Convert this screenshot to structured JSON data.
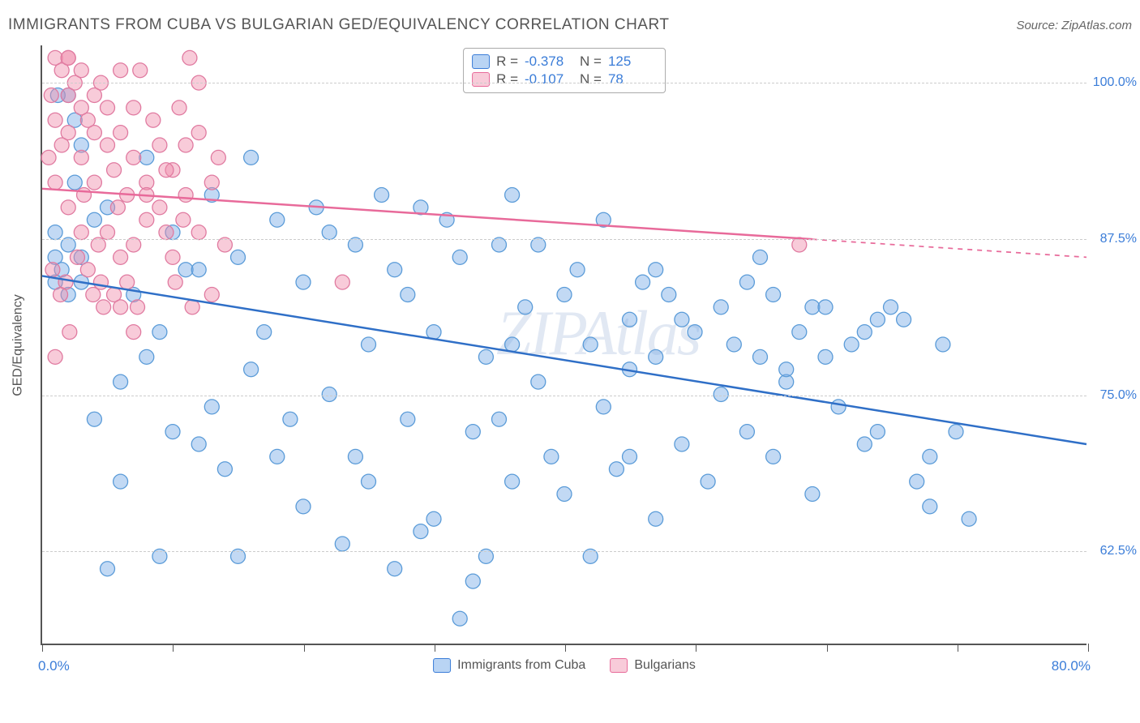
{
  "title": "IMMIGRANTS FROM CUBA VS BULGARIAN GED/EQUIVALENCY CORRELATION CHART",
  "source": "Source: ZipAtlas.com",
  "ylabel": "GED/Equivalency",
  "watermark": "ZIPAtlas",
  "chart": {
    "type": "scatter",
    "xlim": [
      0,
      80
    ],
    "ylim": [
      55,
      103
    ],
    "xtick_positions": [
      0,
      10,
      20,
      30,
      40,
      50,
      60,
      70,
      80
    ],
    "ygrid": [
      {
        "value": 62.5,
        "label": "62.5%"
      },
      {
        "value": 75.0,
        "label": "75.0%"
      },
      {
        "value": 87.5,
        "label": "87.5%"
      },
      {
        "value": 100.0,
        "label": "100.0%"
      }
    ],
    "x_left_label": "0.0%",
    "x_right_label": "80.0%",
    "background_color": "#ffffff",
    "grid_color": "#cccccc",
    "series": [
      {
        "name": "Immigrants from Cuba",
        "R": "-0.378",
        "N": "125",
        "marker_color": "rgba(120,170,230,0.45)",
        "marker_stroke": "#5a9bd8",
        "marker_radius": 9,
        "line_color": "#2f6fc7",
        "line_width": 2.5,
        "trend": {
          "x1": 0,
          "y1": 84.5,
          "x2": 80,
          "y2": 71.0,
          "data_xmax": 80
        },
        "points": [
          [
            1,
            86
          ],
          [
            1.5,
            85
          ],
          [
            2,
            87
          ],
          [
            2,
            83
          ],
          [
            1,
            88
          ],
          [
            3,
            86
          ],
          [
            2.5,
            92
          ],
          [
            3,
            84
          ],
          [
            4,
            89
          ],
          [
            1,
            84
          ],
          [
            5,
            90
          ],
          [
            6,
            76
          ],
          [
            7,
            83
          ],
          [
            8,
            94
          ],
          [
            8,
            78
          ],
          [
            9,
            80
          ],
          [
            10,
            72
          ],
          [
            10,
            88
          ],
          [
            11,
            85
          ],
          [
            12,
            71
          ],
          [
            13,
            91
          ],
          [
            13,
            74
          ],
          [
            14,
            69
          ],
          [
            15,
            62
          ],
          [
            15,
            86
          ],
          [
            16,
            94
          ],
          [
            16,
            77
          ],
          [
            17,
            80
          ],
          [
            18,
            89
          ],
          [
            18,
            70
          ],
          [
            19,
            73
          ],
          [
            20,
            84
          ],
          [
            20,
            66
          ],
          [
            21,
            90
          ],
          [
            22,
            88
          ],
          [
            22,
            75
          ],
          [
            23,
            63
          ],
          [
            24,
            87
          ],
          [
            24,
            70
          ],
          [
            25,
            79
          ],
          [
            25,
            68
          ],
          [
            26,
            91
          ],
          [
            27,
            85
          ],
          [
            27,
            61
          ],
          [
            28,
            83
          ],
          [
            28,
            73
          ],
          [
            29,
            90
          ],
          [
            30,
            80
          ],
          [
            30,
            65
          ],
          [
            31,
            89
          ],
          [
            32,
            86
          ],
          [
            32,
            57
          ],
          [
            33,
            72
          ],
          [
            33,
            60
          ],
          [
            34,
            78
          ],
          [
            34,
            62
          ],
          [
            35,
            87
          ],
          [
            36,
            91
          ],
          [
            36,
            68
          ],
          [
            37,
            82
          ],
          [
            38,
            76
          ],
          [
            38,
            87
          ],
          [
            39,
            70
          ],
          [
            40,
            83
          ],
          [
            40,
            67
          ],
          [
            41,
            85
          ],
          [
            42,
            79
          ],
          [
            42,
            62
          ],
          [
            43,
            74
          ],
          [
            43,
            89
          ],
          [
            44,
            69
          ],
          [
            45,
            81
          ],
          [
            45,
            77
          ],
          [
            46,
            84
          ],
          [
            47,
            65
          ],
          [
            47,
            78
          ],
          [
            48,
            83
          ],
          [
            49,
            71
          ],
          [
            49,
            81
          ],
          [
            50,
            80
          ],
          [
            51,
            68
          ],
          [
            52,
            75
          ],
          [
            52,
            82
          ],
          [
            53,
            79
          ],
          [
            54,
            72
          ],
          [
            55,
            86
          ],
          [
            55,
            78
          ],
          [
            56,
            83
          ],
          [
            56,
            70
          ],
          [
            57,
            76
          ],
          [
            58,
            80
          ],
          [
            59,
            82
          ],
          [
            59,
            67
          ],
          [
            60,
            78
          ],
          [
            60,
            82
          ],
          [
            61,
            74
          ],
          [
            62,
            79
          ],
          [
            63,
            71
          ],
          [
            63,
            80
          ],
          [
            64,
            72
          ],
          [
            64,
            81
          ],
          [
            65,
            82
          ],
          [
            66,
            81
          ],
          [
            67,
            68
          ],
          [
            68,
            70
          ],
          [
            68,
            66
          ],
          [
            69,
            79
          ],
          [
            70,
            72
          ],
          [
            71,
            65
          ],
          [
            57,
            77
          ],
          [
            4,
            73
          ],
          [
            6,
            68
          ],
          [
            9,
            62
          ],
          [
            12,
            85
          ],
          [
            3,
            95
          ],
          [
            29,
            64
          ],
          [
            47,
            85
          ],
          [
            54,
            84
          ],
          [
            35,
            73
          ],
          [
            45,
            70
          ],
          [
            2,
            99
          ],
          [
            2.5,
            97
          ],
          [
            1.2,
            99
          ],
          [
            5,
            61
          ],
          [
            36,
            79
          ]
        ]
      },
      {
        "name": "Bulgarians",
        "R": "-0.107",
        "N": "78",
        "marker_color": "rgba(240,140,170,0.45)",
        "marker_stroke": "#e07aa0",
        "marker_radius": 9,
        "line_color": "#e86a9a",
        "line_width": 2.5,
        "trend": {
          "x1": 0,
          "y1": 91.5,
          "x2": 80,
          "y2": 86.0,
          "data_xmax": 59
        },
        "points": [
          [
            1,
            102
          ],
          [
            1.5,
            101
          ],
          [
            2,
            102
          ],
          [
            2,
            99
          ],
          [
            2.5,
            100
          ],
          [
            3,
            101
          ],
          [
            3,
            98
          ],
          [
            3.5,
            97
          ],
          [
            4,
            99
          ],
          [
            4,
            96
          ],
          [
            4.5,
            100
          ],
          [
            5,
            95
          ],
          [
            5,
            98
          ],
          [
            5.5,
            93
          ],
          [
            6,
            96
          ],
          [
            6,
            101
          ],
          [
            6.5,
            91
          ],
          [
            7,
            94
          ],
          [
            7,
            98
          ],
          [
            7.5,
            101
          ],
          [
            8,
            92
          ],
          [
            8,
            89
          ],
          [
            8.5,
            97
          ],
          [
            9,
            95
          ],
          [
            9,
            90
          ],
          [
            9.5,
            88
          ],
          [
            10,
            93
          ],
          [
            10,
            86
          ],
          [
            10.5,
            98
          ],
          [
            11,
            91
          ],
          [
            11,
            95
          ],
          [
            12,
            88
          ],
          [
            12,
            100
          ],
          [
            13,
            83
          ],
          [
            13,
            92
          ],
          [
            11.5,
            82
          ],
          [
            2,
            90
          ],
          [
            3,
            88
          ],
          [
            4,
            92
          ],
          [
            5,
            88
          ],
          [
            6,
            86
          ],
          [
            7,
            87
          ],
          [
            2,
            96
          ],
          [
            3,
            94
          ],
          [
            1,
            97
          ],
          [
            1.5,
            95
          ],
          [
            1,
            92
          ],
          [
            2,
            102
          ],
          [
            4.5,
            84
          ],
          [
            5.5,
            83
          ],
          [
            6,
            82
          ],
          [
            7,
            80
          ],
          [
            0.8,
            85
          ],
          [
            1,
            78
          ],
          [
            3.5,
            85
          ],
          [
            8,
            91
          ],
          [
            9.5,
            93
          ],
          [
            12,
            96
          ],
          [
            14,
            87
          ],
          [
            1.8,
            84
          ],
          [
            2.7,
            86
          ],
          [
            3.2,
            91
          ],
          [
            4.3,
            87
          ],
          [
            5.8,
            90
          ],
          [
            2.1,
            80
          ],
          [
            1.4,
            83
          ],
          [
            0.5,
            94
          ],
          [
            0.7,
            99
          ],
          [
            6.5,
            84
          ],
          [
            7.3,
            82
          ],
          [
            3.9,
            83
          ],
          [
            4.7,
            82
          ],
          [
            10.2,
            84
          ],
          [
            23,
            84
          ],
          [
            10.8,
            89
          ],
          [
            11.3,
            102
          ],
          [
            13.5,
            94
          ],
          [
            58,
            87
          ]
        ]
      }
    ]
  },
  "bottom_legend": [
    {
      "swatch": "blue",
      "label": "Immigrants from Cuba"
    },
    {
      "swatch": "pink",
      "label": "Bulgarians"
    }
  ]
}
